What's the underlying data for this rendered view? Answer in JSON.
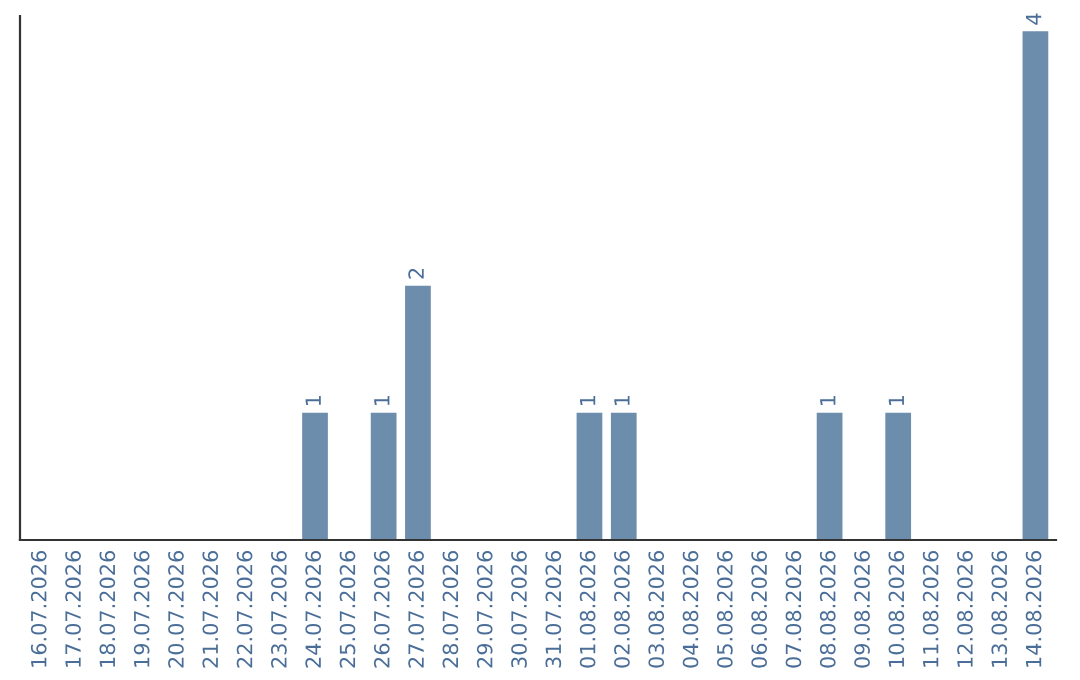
{
  "chart_data": {
    "type": "bar",
    "categories": [
      "16.07.2026",
      "17.07.2026",
      "18.07.2026",
      "19.07.2026",
      "20.07.2026",
      "21.07.2026",
      "22.07.2026",
      "23.07.2026",
      "24.07.2026",
      "25.07.2026",
      "26.07.2026",
      "27.07.2026",
      "28.07.2026",
      "29.07.2026",
      "30.07.2026",
      "31.07.2026",
      "01.08.2026",
      "02.08.2026",
      "03.08.2026",
      "04.08.2026",
      "05.08.2026",
      "06.08.2026",
      "07.08.2026",
      "08.08.2026",
      "09.08.2026",
      "10.08.2026",
      "11.08.2026",
      "12.08.2026",
      "13.08.2026",
      "14.08.2026"
    ],
    "values": [
      0,
      0,
      0,
      0,
      0,
      0,
      0,
      0,
      1,
      0,
      1,
      2,
      0,
      0,
      0,
      0,
      1,
      1,
      0,
      0,
      0,
      0,
      0,
      1,
      0,
      1,
      0,
      0,
      0,
      4
    ],
    "value_labels": [
      null,
      null,
      null,
      null,
      null,
      null,
      null,
      null,
      "1",
      null,
      "1",
      "2",
      null,
      null,
      null,
      null,
      "1",
      "1",
      null,
      null,
      null,
      null,
      null,
      "1",
      null,
      "1",
      null,
      null,
      null,
      "4"
    ],
    "color": "#6d8dad",
    "tick_labels": "x",
    "grid": false
  }
}
